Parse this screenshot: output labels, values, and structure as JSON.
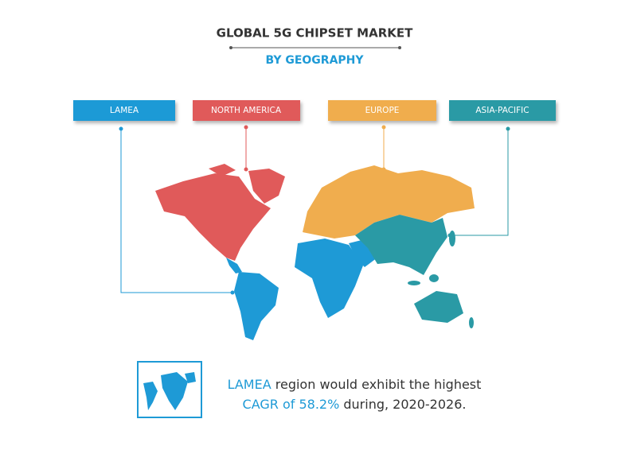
{
  "header": {
    "title": "GLOBAL 5G CHIPSET MARKET",
    "subtitle": "BY GEOGRAPHY"
  },
  "regions": [
    {
      "label": "LAMEA"
    },
    {
      "label": "NORTH AMERICA"
    },
    {
      "label": "EUROPE"
    },
    {
      "label": "ASIA-PACIFIC"
    }
  ],
  "highlight": {
    "line1": {
      "emphasis": "LAMEA",
      "text": " region would exhibit the highest"
    },
    "line2": {
      "emphasis": "CAGR of 58.2%",
      "text": " during, 2020-2026."
    }
  }
}
